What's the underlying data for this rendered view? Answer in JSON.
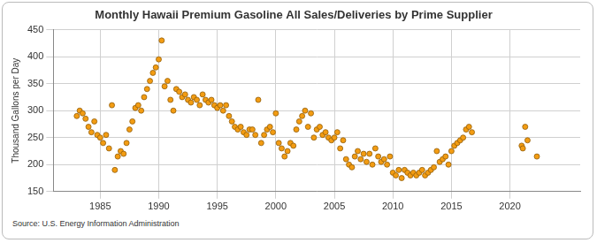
{
  "chart_data": {
    "type": "scatter",
    "title": "Monthly Hawaii Premium Gasoline All Sales/Deliveries by Prime Supplier",
    "y_label": "Thousand Gallons per Day",
    "source": "Source: U.S. Energy Information Administration",
    "marker": "circle",
    "grid": true,
    "series": [
      {
        "name": "Hawaii Premium Gasoline",
        "color": "#f39c12",
        "x": [
          1983.0,
          1983.25,
          1983.5,
          1983.75,
          1984.0,
          1984.25,
          1984.5,
          1984.75,
          1985.0,
          1985.25,
          1985.5,
          1985.75,
          1986.0,
          1986.25,
          1986.5,
          1986.75,
          1987.0,
          1987.25,
          1987.5,
          1987.75,
          1988.0,
          1988.25,
          1988.5,
          1988.75,
          1989.0,
          1989.25,
          1989.5,
          1989.75,
          1990.0,
          1990.25,
          1990.5,
          1990.75,
          1991.0,
          1991.25,
          1991.5,
          1991.75,
          1992.0,
          1992.25,
          1992.5,
          1992.75,
          1993.0,
          1993.25,
          1993.5,
          1993.75,
          1994.0,
          1994.25,
          1994.5,
          1994.75,
          1995.0,
          1995.25,
          1995.5,
          1995.75,
          1996.0,
          1996.25,
          1996.5,
          1996.75,
          1997.0,
          1997.25,
          1997.5,
          1997.75,
          1998.0,
          1998.25,
          1998.5,
          1998.75,
          1999.0,
          1999.25,
          1999.5,
          1999.75,
          2000.0,
          2000.25,
          2000.5,
          2000.75,
          2001.0,
          2001.25,
          2001.5,
          2001.75,
          2002.0,
          2002.25,
          2002.5,
          2002.75,
          2003.0,
          2003.25,
          2003.5,
          2003.75,
          2004.0,
          2004.25,
          2004.5,
          2004.75,
          2005.0,
          2005.25,
          2005.5,
          2005.75,
          2006.0,
          2006.25,
          2006.5,
          2006.75,
          2007.0,
          2007.25,
          2007.5,
          2007.75,
          2008.0,
          2008.25,
          2008.5,
          2008.75,
          2009.0,
          2009.25,
          2009.5,
          2009.75,
          2010.0,
          2010.25,
          2010.5,
          2010.75,
          2011.0,
          2011.25,
          2011.5,
          2011.75,
          2012.0,
          2012.25,
          2012.5,
          2012.75,
          2013.0,
          2013.25,
          2013.5,
          2013.75,
          2014.0,
          2014.25,
          2014.5,
          2014.75,
          2015.0,
          2015.25,
          2015.5,
          2015.75,
          2016.0,
          2016.25,
          2016.5,
          2016.75,
          2021.0,
          2021.1,
          2021.3,
          2021.5,
          2022.3
        ],
        "values": [
          290,
          300,
          295,
          285,
          270,
          260,
          280,
          255,
          250,
          240,
          255,
          230,
          310,
          190,
          215,
          225,
          220,
          240,
          265,
          280,
          305,
          310,
          300,
          325,
          340,
          355,
          370,
          380,
          395,
          430,
          345,
          355,
          320,
          300,
          340,
          335,
          325,
          330,
          320,
          315,
          325,
          320,
          310,
          330,
          320,
          315,
          320,
          310,
          305,
          310,
          300,
          310,
          290,
          280,
          270,
          265,
          270,
          260,
          255,
          265,
          265,
          255,
          320,
          240,
          255,
          265,
          270,
          260,
          295,
          240,
          230,
          215,
          225,
          240,
          235,
          265,
          280,
          290,
          300,
          270,
          295,
          250,
          265,
          270,
          255,
          260,
          250,
          245,
          250,
          260,
          230,
          245,
          210,
          200,
          195,
          215,
          225,
          210,
          220,
          205,
          220,
          200,
          230,
          215,
          205,
          210,
          200,
          215,
          185,
          180,
          190,
          175,
          190,
          185,
          180,
          185,
          180,
          185,
          190,
          180,
          185,
          190,
          195,
          225,
          205,
          210,
          215,
          200,
          225,
          235,
          240,
          245,
          250,
          265,
          270,
          260,
          235,
          230,
          270,
          245,
          215
        ]
      }
    ],
    "xlim": [
      1981,
      2026
    ],
    "xticks": [
      1985,
      1990,
      1995,
      2000,
      2005,
      2010,
      2015,
      2020
    ],
    "ylim": [
      150,
      450
    ],
    "yticks": [
      150,
      200,
      250,
      300,
      350,
      400,
      450
    ]
  }
}
